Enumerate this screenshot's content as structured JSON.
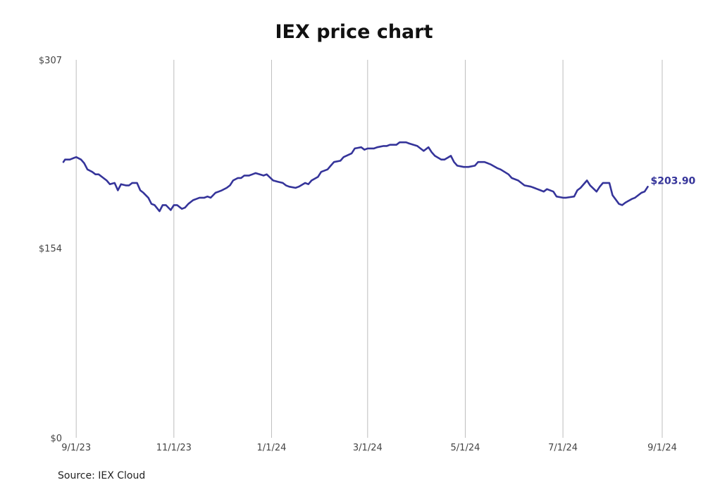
{
  "chart_data": {
    "type": "line",
    "title": "IEX price chart",
    "source": "Source: IEX Cloud",
    "xlabel": "",
    "ylabel": "",
    "x_ticks": [
      {
        "date": "2023-09-01",
        "label": "9/1/23"
      },
      {
        "date": "2023-11-01",
        "label": "11/1/23"
      },
      {
        "date": "2024-01-01",
        "label": "1/1/24"
      },
      {
        "date": "2024-03-01",
        "label": "3/1/24"
      },
      {
        "date": "2024-05-01",
        "label": "5/1/24"
      },
      {
        "date": "2024-07-01",
        "label": "7/1/24"
      },
      {
        "date": "2024-09-01",
        "label": "9/1/24"
      }
    ],
    "y_ticks": [
      {
        "value": 0,
        "label": "$0"
      },
      {
        "value": 154,
        "label": "$154"
      },
      {
        "value": 307,
        "label": "$307"
      }
    ],
    "xlim": [
      "2023-08-24",
      "2024-09-01"
    ],
    "ylim": [
      0,
      307
    ],
    "grid": "vertical",
    "line_color": "#35349a",
    "last_value_label": "$203.90",
    "series": [
      {
        "points": [
          [
            "2023-08-24",
            224
          ],
          [
            "2023-08-25",
            226
          ],
          [
            "2023-08-28",
            226
          ],
          [
            "2023-08-30",
            227
          ],
          [
            "2023-09-01",
            228
          ],
          [
            "2023-09-04",
            226
          ],
          [
            "2023-09-06",
            223
          ],
          [
            "2023-09-08",
            218
          ],
          [
            "2023-09-11",
            216
          ],
          [
            "2023-09-13",
            214
          ],
          [
            "2023-09-15",
            214
          ],
          [
            "2023-09-18",
            211
          ],
          [
            "2023-09-20",
            209
          ],
          [
            "2023-09-22",
            206
          ],
          [
            "2023-09-25",
            207
          ],
          [
            "2023-09-27",
            201
          ],
          [
            "2023-09-29",
            206
          ],
          [
            "2023-10-02",
            205
          ],
          [
            "2023-10-04",
            205
          ],
          [
            "2023-10-06",
            207
          ],
          [
            "2023-10-09",
            207
          ],
          [
            "2023-10-11",
            201
          ],
          [
            "2023-10-13",
            199
          ],
          [
            "2023-10-16",
            195
          ],
          [
            "2023-10-18",
            190
          ],
          [
            "2023-10-20",
            189
          ],
          [
            "2023-10-23",
            184
          ],
          [
            "2023-10-25",
            189
          ],
          [
            "2023-10-27",
            189
          ],
          [
            "2023-10-30",
            185
          ],
          [
            "2023-11-01",
            189
          ],
          [
            "2023-11-03",
            189
          ],
          [
            "2023-11-06",
            186
          ],
          [
            "2023-11-08",
            187
          ],
          [
            "2023-11-10",
            190
          ],
          [
            "2023-11-13",
            193
          ],
          [
            "2023-11-15",
            194
          ],
          [
            "2023-11-17",
            195
          ],
          [
            "2023-11-20",
            195
          ],
          [
            "2023-11-22",
            196
          ],
          [
            "2023-11-24",
            195
          ],
          [
            "2023-11-27",
            199
          ],
          [
            "2023-11-29",
            200
          ],
          [
            "2023-12-01",
            201
          ],
          [
            "2023-12-04",
            203
          ],
          [
            "2023-12-06",
            205
          ],
          [
            "2023-12-08",
            209
          ],
          [
            "2023-12-11",
            211
          ],
          [
            "2023-12-13",
            211
          ],
          [
            "2023-12-15",
            213
          ],
          [
            "2023-12-18",
            213
          ],
          [
            "2023-12-20",
            214
          ],
          [
            "2023-12-22",
            215
          ],
          [
            "2023-12-27",
            213
          ],
          [
            "2023-12-29",
            214
          ],
          [
            "2024-01-02",
            209
          ],
          [
            "2024-01-05",
            208
          ],
          [
            "2024-01-08",
            207
          ],
          [
            "2024-01-10",
            205
          ],
          [
            "2024-01-12",
            204
          ],
          [
            "2024-01-16",
            203
          ],
          [
            "2024-01-18",
            204
          ],
          [
            "2024-01-22",
            207
          ],
          [
            "2024-01-24",
            206
          ],
          [
            "2024-01-26",
            209
          ],
          [
            "2024-01-30",
            212
          ],
          [
            "2024-02-01",
            216
          ],
          [
            "2024-02-05",
            218
          ],
          [
            "2024-02-07",
            221
          ],
          [
            "2024-02-09",
            224
          ],
          [
            "2024-02-13",
            225
          ],
          [
            "2024-02-15",
            228
          ],
          [
            "2024-02-20",
            231
          ],
          [
            "2024-02-22",
            235
          ],
          [
            "2024-02-26",
            236
          ],
          [
            "2024-02-28",
            234
          ],
          [
            "2024-03-01",
            235
          ],
          [
            "2024-03-05",
            235
          ],
          [
            "2024-03-07",
            236
          ],
          [
            "2024-03-11",
            237
          ],
          [
            "2024-03-13",
            237
          ],
          [
            "2024-03-15",
            238
          ],
          [
            "2024-03-19",
            238
          ],
          [
            "2024-03-21",
            240
          ],
          [
            "2024-03-25",
            240
          ],
          [
            "2024-03-27",
            239
          ],
          [
            "2024-04-01",
            237
          ],
          [
            "2024-04-03",
            235
          ],
          [
            "2024-04-05",
            233
          ],
          [
            "2024-04-08",
            236
          ],
          [
            "2024-04-10",
            232
          ],
          [
            "2024-04-12",
            229
          ],
          [
            "2024-04-16",
            226
          ],
          [
            "2024-04-18",
            226
          ],
          [
            "2024-04-22",
            229
          ],
          [
            "2024-04-24",
            224
          ],
          [
            "2024-04-26",
            221
          ],
          [
            "2024-04-30",
            220
          ],
          [
            "2024-05-03",
            220
          ],
          [
            "2024-05-07",
            221
          ],
          [
            "2024-05-09",
            224
          ],
          [
            "2024-05-13",
            224
          ],
          [
            "2024-05-15",
            223
          ],
          [
            "2024-05-17",
            222
          ],
          [
            "2024-05-21",
            219
          ],
          [
            "2024-05-23",
            218
          ],
          [
            "2024-05-28",
            214
          ],
          [
            "2024-05-30",
            211
          ],
          [
            "2024-06-03",
            209
          ],
          [
            "2024-06-05",
            207
          ],
          [
            "2024-06-07",
            205
          ],
          [
            "2024-06-11",
            204
          ],
          [
            "2024-06-13",
            203
          ],
          [
            "2024-06-17",
            201
          ],
          [
            "2024-06-19",
            200
          ],
          [
            "2024-06-21",
            202
          ],
          [
            "2024-06-25",
            200
          ],
          [
            "2024-06-27",
            196
          ],
          [
            "2024-07-01",
            195
          ],
          [
            "2024-07-03",
            195
          ],
          [
            "2024-07-08",
            196
          ],
          [
            "2024-07-10",
            201
          ],
          [
            "2024-07-12",
            203
          ],
          [
            "2024-07-16",
            209
          ],
          [
            "2024-07-18",
            205
          ],
          [
            "2024-07-22",
            200
          ],
          [
            "2024-07-24",
            204
          ],
          [
            "2024-07-26",
            207
          ],
          [
            "2024-07-30",
            207
          ],
          [
            "2024-08-01",
            197
          ],
          [
            "2024-08-05",
            190
          ],
          [
            "2024-08-07",
            189
          ],
          [
            "2024-08-09",
            191
          ],
          [
            "2024-08-13",
            194
          ],
          [
            "2024-08-15",
            195
          ],
          [
            "2024-08-19",
            199
          ],
          [
            "2024-08-21",
            200
          ],
          [
            "2024-08-23",
            203.9
          ]
        ]
      }
    ]
  }
}
